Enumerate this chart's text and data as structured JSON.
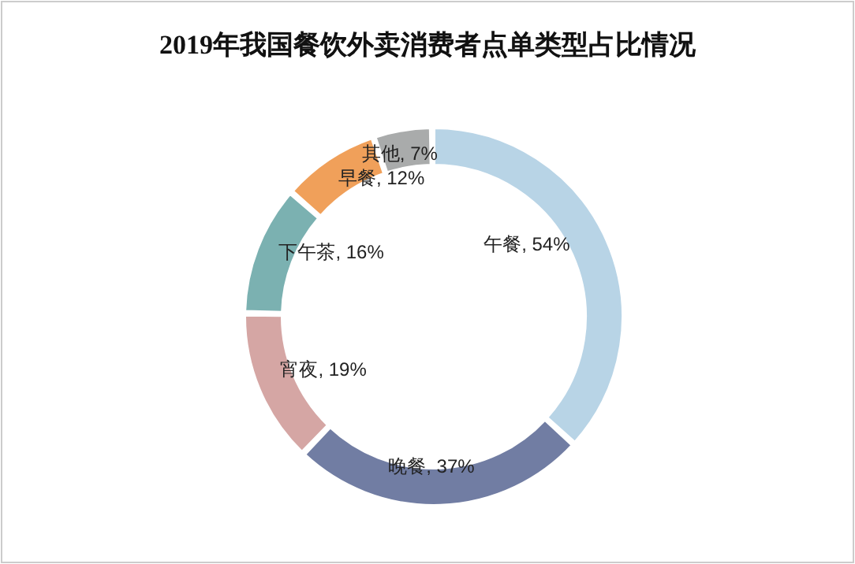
{
  "chart_data": {
    "type": "donut",
    "title": "2019年我国餐饮外卖消费者点单类型占比情况",
    "categories": [
      "午餐",
      "晚餐",
      "宵夜",
      "下午茶",
      "早餐",
      "其他"
    ],
    "values": [
      54,
      37,
      19,
      16,
      12,
      7
    ],
    "value_labels": [
      "54%",
      "37%",
      "19%",
      "16%",
      "12%",
      "7%"
    ],
    "colors": [
      "#b8d4e6",
      "#717da3",
      "#d5a6a4",
      "#7bb1b1",
      "#f0a05a",
      "#a9abab"
    ]
  }
}
